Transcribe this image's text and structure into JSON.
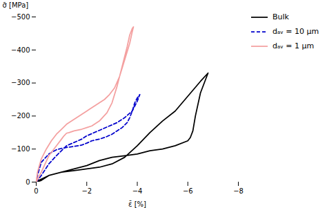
{
  "chart_data": {
    "type": "line",
    "xlabel": "ε̄ [%]",
    "ylabel": "σ̄ [MPa]",
    "xlim": [
      0,
      -8
    ],
    "ylim": [
      0,
      -500
    ],
    "xticks": [
      0,
      -2,
      -4,
      -6,
      -8
    ],
    "yticks": [
      0,
      -100,
      -200,
      -300,
      -400,
      -500
    ],
    "grid": false,
    "legend": "right",
    "series": [
      {
        "name": "Bulk",
        "color": "#000000",
        "line_style": "solid",
        "x": [
          0,
          -0.2,
          -0.5,
          -1.0,
          -1.5,
          -2.0,
          -2.5,
          -3.0,
          -3.5,
          -4.0,
          -4.5,
          -5.0,
          -5.5,
          -6.0,
          -6.5,
          -6.8,
          -6.8,
          -6.5,
          -6.3,
          -6.2,
          -6.1,
          -6.0,
          -5.5,
          -5.0,
          -4.5,
          -4.0,
          -3.5,
          -3.0,
          -2.5,
          -2.0,
          -1.5,
          -1.0,
          -0.5,
          -0.1,
          0
        ],
        "values": [
          0,
          -5,
          -20,
          -30,
          -35,
          -40,
          -45,
          -55,
          -75,
          -110,
          -150,
          -185,
          -215,
          -260,
          -305,
          -330,
          -330,
          -270,
          -200,
          -155,
          -135,
          -125,
          -110,
          -100,
          -95,
          -85,
          -80,
          -75,
          -65,
          -50,
          -40,
          -30,
          -20,
          -5,
          0
        ]
      },
      {
        "name": "dₐᵥ = 10 μm",
        "color": "#0000cc",
        "line_style": "dashed",
        "x": [
          0,
          -0.2,
          -0.5,
          -0.8,
          -1.0,
          -1.2,
          -1.5,
          -1.8,
          -2.0,
          -2.3,
          -2.6,
          -2.9,
          -3.2,
          -3.5,
          -3.8,
          -4.0,
          -4.1,
          -4.1,
          -4.0,
          -3.9,
          -3.8,
          -3.7,
          -3.6,
          -3.4,
          -3.2,
          -3.0,
          -2.8,
          -2.5,
          -2.2,
          -2.0,
          -1.8,
          -1.5,
          -1.2,
          -1.0,
          -0.8,
          -0.5,
          -0.2,
          -0.05,
          0
        ],
        "values": [
          0,
          -20,
          -55,
          -80,
          -95,
          -110,
          -120,
          -130,
          -140,
          -150,
          -160,
          -170,
          -180,
          -195,
          -215,
          -245,
          -265,
          -265,
          -255,
          -240,
          -215,
          -195,
          -180,
          -165,
          -155,
          -145,
          -138,
          -130,
          -125,
          -118,
          -112,
          -108,
          -105,
          -102,
          -98,
          -85,
          -60,
          -20,
          0
        ]
      },
      {
        "name": "dₐᵥ = 1 μm",
        "color": "#f4a0a0",
        "line_style": "solid",
        "x": [
          0,
          -0.2,
          -0.5,
          -0.8,
          -1.0,
          -1.1,
          -1.2,
          -1.3,
          -1.5,
          -1.8,
          -2.0,
          -2.2,
          -2.5,
          -2.8,
          -3.0,
          -3.2,
          -3.4,
          -3.6,
          -3.7,
          -3.8,
          -3.85,
          -3.85,
          -3.8,
          -3.7,
          -3.5,
          -3.3,
          -3.1,
          -2.9,
          -2.7,
          -2.5,
          -2.3,
          -2.1,
          -2.0,
          -1.8,
          -1.6,
          -1.4,
          -1.2,
          -1.0,
          -0.8,
          -0.6,
          -0.4,
          -0.2,
          -0.05,
          0
        ],
        "values": [
          0,
          -30,
          -80,
          -110,
          -130,
          -140,
          -148,
          -150,
          -155,
          -160,
          -165,
          -170,
          -185,
          -210,
          -240,
          -290,
          -350,
          -410,
          -445,
          -465,
          -470,
          -470,
          -455,
          -420,
          -370,
          -320,
          -285,
          -265,
          -250,
          -240,
          -230,
          -220,
          -215,
          -205,
          -195,
          -185,
          -175,
          -160,
          -145,
          -125,
          -100,
          -70,
          -30,
          0
        ]
      }
    ]
  }
}
